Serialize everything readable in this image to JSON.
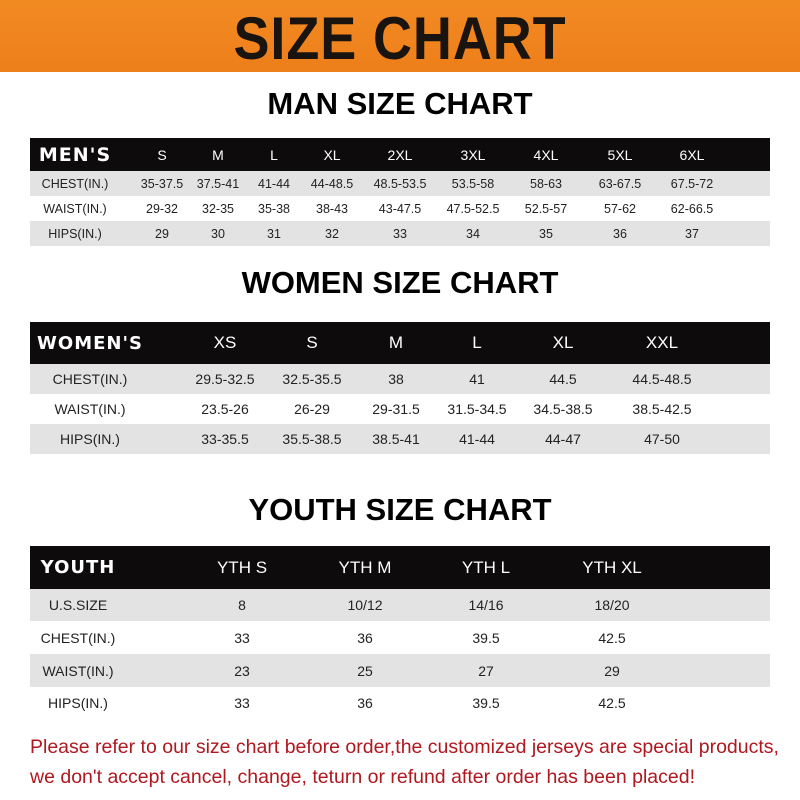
{
  "banner_title": "SIZE CHART",
  "colors": {
    "banner": "#f08a24",
    "header_row": "#0d0b0b",
    "notice": "#b0171f"
  },
  "men": {
    "title": "MAN SIZE CHART",
    "header": [
      "MEN'S",
      "S",
      "M",
      "L",
      "XL",
      "2XL",
      "3XL",
      "4XL",
      "5XL",
      "6XL"
    ],
    "rows": [
      [
        "CHEST(IN.)",
        "35-37.5",
        "37.5-41",
        "41-44",
        "44-48.5",
        "48.5-53.5",
        "53.5-58",
        "58-63",
        "63-67.5",
        "67.5-72"
      ],
      [
        "WAIST(IN.)",
        "29-32",
        "32-35",
        "35-38",
        "38-43",
        "43-47.5",
        "47.5-52.5",
        "52.5-57",
        "57-62",
        "62-66.5"
      ],
      [
        "HIPS(IN.)",
        "29",
        "30",
        "31",
        "32",
        "33",
        "34",
        "35",
        "36",
        "37"
      ]
    ]
  },
  "women": {
    "title": "WOMEN SIZE CHART",
    "header": [
      "WOMEN'S",
      "XS",
      "S",
      "M",
      "L",
      "XL",
      "XXL"
    ],
    "rows": [
      [
        "CHEST(IN.)",
        "29.5-32.5",
        "32.5-35.5",
        "38",
        "41",
        "44.5",
        "44.5-48.5"
      ],
      [
        "WAIST(IN.)",
        "23.5-26",
        "26-29",
        "29-31.5",
        "31.5-34.5",
        "34.5-38.5",
        "38.5-42.5"
      ],
      [
        "HIPS(IN.)",
        "33-35.5",
        "35.5-38.5",
        "38.5-41",
        "41-44",
        "44-47",
        "47-50"
      ]
    ]
  },
  "youth": {
    "title": "YOUTH SIZE CHART",
    "header": [
      "YOUTH",
      "YTH S",
      "YTH M",
      "YTH L",
      "YTH XL"
    ],
    "rows": [
      [
        "U.S.SIZE",
        "8",
        "10/12",
        "14/16",
        "18/20"
      ],
      [
        "CHEST(IN.)",
        "33",
        "36",
        "39.5",
        "42.5"
      ],
      [
        "WAIST(IN.)",
        "23",
        "25",
        "27",
        "29"
      ],
      [
        "HIPS(IN.)",
        "33",
        "36",
        "39.5",
        "42.5"
      ]
    ]
  },
  "notice": {
    "line1": "Please refer to our size chart before order,the customized jerseys are special products,",
    "line2": "we don't accept cancel, change, teturn or refund after order has been placed!"
  }
}
